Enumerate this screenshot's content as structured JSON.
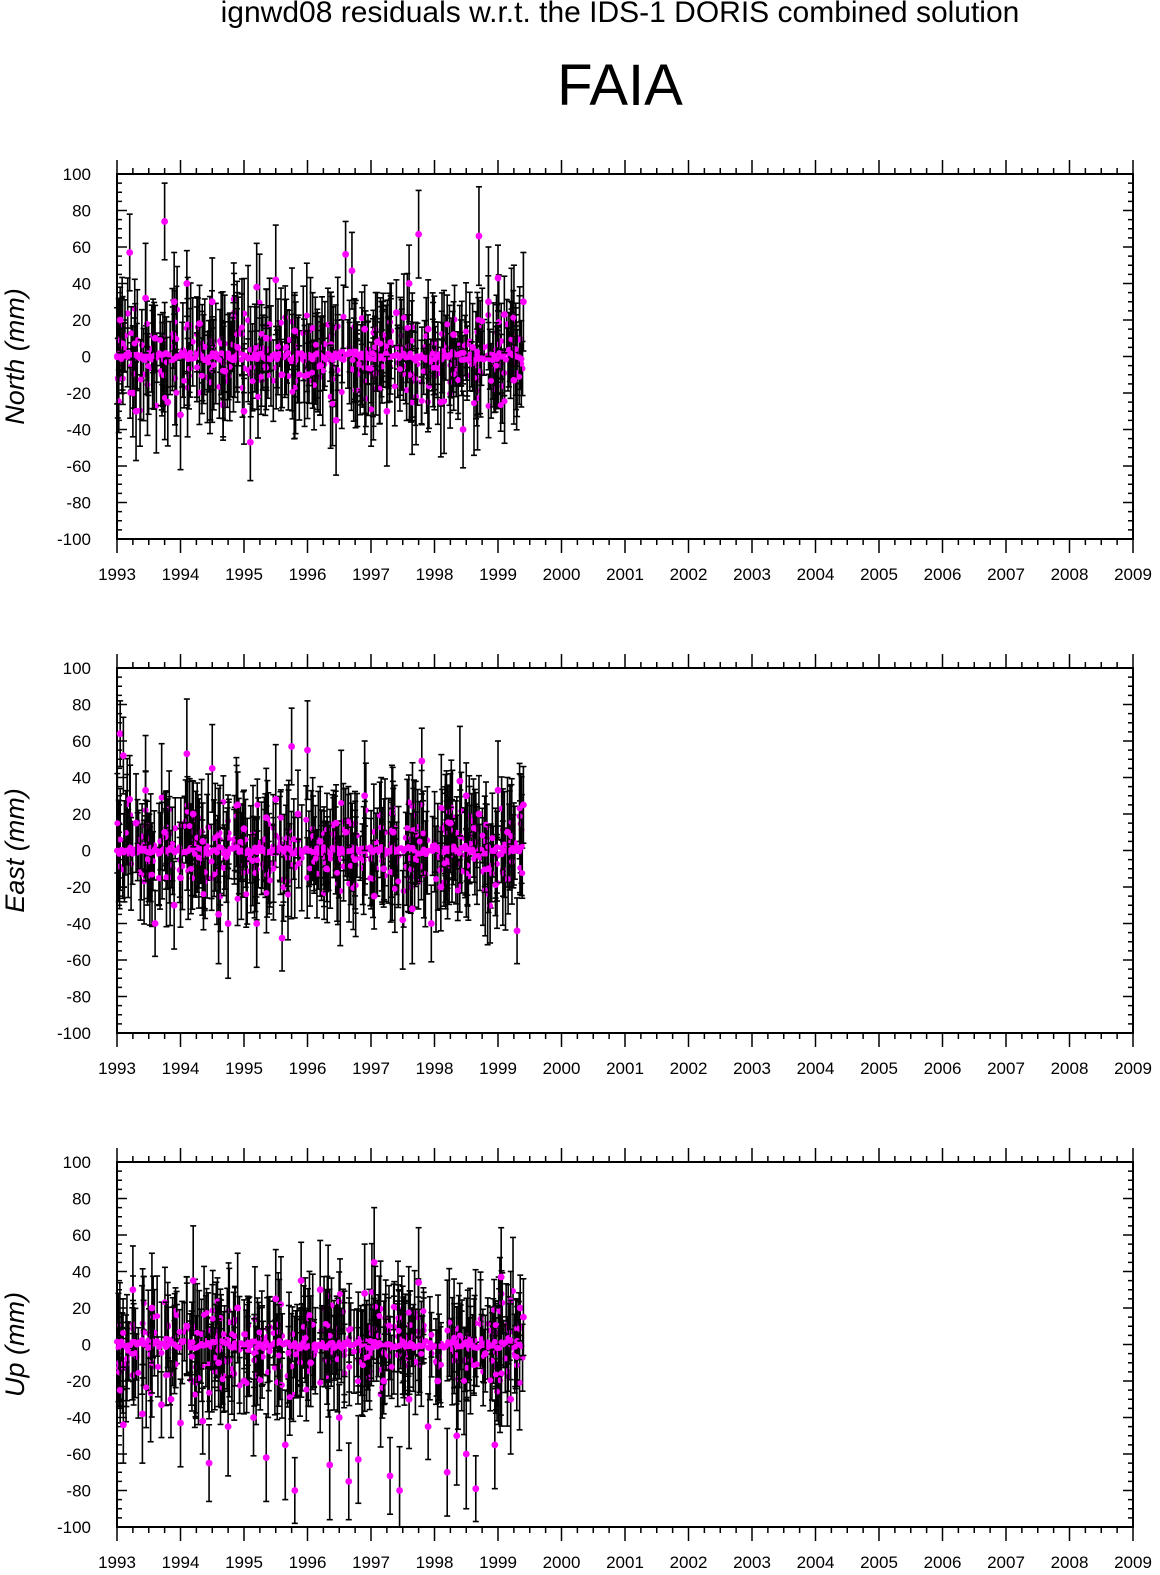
{
  "header": {
    "suptitle": "ignwd08 residuals w.r.t. the IDS-1 DORIS combined solution",
    "station": "FAIA"
  },
  "colors": {
    "point": "#ff00ff",
    "errorbar": "#000000",
    "frame": "#000000"
  },
  "chart_data": [
    {
      "type": "scatter",
      "ylabel": "North (mm)",
      "xlim": [
        1993,
        2009
      ],
      "ylim": [
        -100,
        100
      ],
      "x_ticks": [
        1993,
        1994,
        1995,
        1996,
        1997,
        1998,
        1999,
        2000,
        2001,
        2002,
        2003,
        2004,
        2005,
        2006,
        2007,
        2008,
        2009
      ],
      "y_ticks": [
        100,
        80,
        60,
        40,
        20,
        0,
        -20,
        -40,
        -60,
        -80,
        -100
      ],
      "error_bars": true,
      "series": [
        {
          "x": [
            1993.05,
            1993.2,
            1993.25,
            1993.3,
            1993.45,
            1993.6,
            1993.75,
            1993.8,
            1993.9,
            1994.0,
            1994.1,
            1994.3,
            1994.5,
            1994.7,
            1994.9,
            1995.0,
            1995.1,
            1995.2,
            1995.35,
            1995.5,
            1995.6,
            1995.8,
            1996.0,
            1996.2,
            1996.45,
            1996.6,
            1996.7,
            1996.9,
            1997.1,
            1997.25,
            1997.4,
            1997.6,
            1997.75,
            1997.9,
            1998.1,
            1998.3,
            1998.45,
            1998.6,
            1998.7,
            1998.85,
            1999.0,
            1999.1,
            1999.25,
            1999.4
          ],
          "y": [
            20,
            57,
            -20,
            -30,
            32,
            10,
            74,
            -25,
            30,
            -32,
            40,
            18,
            30,
            -8,
            5,
            -30,
            -47,
            38,
            10,
            42,
            -10,
            14,
            -10,
            -5,
            -35,
            56,
            47,
            15,
            8,
            -30,
            24,
            40,
            67,
            15,
            -25,
            12,
            -40,
            5,
            66,
            30,
            43,
            23,
            -13,
            30
          ]
        }
      ]
    },
    {
      "type": "scatter",
      "ylabel": "East (mm)",
      "xlim": [
        1993,
        2009
      ],
      "ylim": [
        -100,
        100
      ],
      "x_ticks": [
        1993,
        1994,
        1995,
        1996,
        1997,
        1998,
        1999,
        2000,
        2001,
        2002,
        2003,
        2004,
        2005,
        2006,
        2007,
        2008,
        2009
      ],
      "y_ticks": [
        100,
        80,
        60,
        40,
        20,
        0,
        -20,
        -40,
        -60,
        -80,
        -100
      ],
      "error_bars": true,
      "series": [
        {
          "x": [
            1993.05,
            1993.1,
            1993.2,
            1993.3,
            1993.45,
            1993.6,
            1993.75,
            1993.9,
            1994.0,
            1994.1,
            1994.2,
            1994.35,
            1994.5,
            1994.6,
            1994.75,
            1994.9,
            1995.0,
            1995.2,
            1995.35,
            1995.5,
            1995.6,
            1995.75,
            1995.85,
            1996.0,
            1996.2,
            1996.3,
            1996.45,
            1996.6,
            1996.75,
            1996.9,
            1997.05,
            1997.2,
            1997.35,
            1997.5,
            1997.65,
            1997.8,
            1997.95,
            1998.1,
            1998.25,
            1998.4,
            1998.5,
            1998.7,
            1998.85,
            1999.0,
            1999.15,
            1999.3,
            1999.4
          ],
          "y": [
            64,
            52,
            28,
            15,
            33,
            -40,
            10,
            -30,
            -15,
            53,
            20,
            5,
            45,
            -35,
            -40,
            25,
            12,
            -40,
            18,
            28,
            -48,
            57,
            20,
            55,
            5,
            -10,
            15,
            10,
            -5,
            30,
            -25,
            -10,
            10,
            -38,
            -32,
            49,
            -40,
            -20,
            15,
            38,
            30,
            20,
            -10,
            33,
            10,
            -44,
            25
          ]
        }
      ]
    },
    {
      "type": "scatter",
      "ylabel": "Up (mm)",
      "xlim": [
        1993,
        2009
      ],
      "ylim": [
        -100,
        100
      ],
      "x_ticks": [
        1993,
        1994,
        1995,
        1996,
        1997,
        1998,
        1999,
        2000,
        2001,
        2002,
        2003,
        2004,
        2005,
        2006,
        2007,
        2008,
        2009
      ],
      "y_ticks": [
        100,
        80,
        60,
        40,
        20,
        0,
        -20,
        -40,
        -60,
        -80,
        -100
      ],
      "error_bars": true,
      "series": [
        {
          "x": [
            1993.05,
            1993.1,
            1993.25,
            1993.4,
            1993.55,
            1993.7,
            1993.85,
            1994.0,
            1994.1,
            1994.2,
            1994.35,
            1994.45,
            1994.6,
            1994.75,
            1994.9,
            1995.0,
            1995.15,
            1995.35,
            1995.5,
            1995.65,
            1995.8,
            1995.9,
            1996.05,
            1996.2,
            1996.35,
            1996.5,
            1996.65,
            1996.8,
            1996.9,
            1997.05,
            1997.2,
            1997.3,
            1997.45,
            1997.6,
            1997.75,
            1997.9,
            1998.05,
            1998.2,
            1998.35,
            1998.5,
            1998.65,
            1998.8,
            1998.95,
            1999.05,
            1999.2,
            1999.35,
            1999.4
          ],
          "y": [
            -25,
            -44,
            30,
            -38,
            20,
            -33,
            -30,
            -43,
            10,
            35,
            -42,
            -65,
            -10,
            -45,
            20,
            -20,
            -40,
            -62,
            25,
            -55,
            -80,
            35,
            -10,
            30,
            -66,
            -40,
            -75,
            -63,
            28,
            45,
            -20,
            -72,
            -80,
            -30,
            34,
            -45,
            -20,
            -70,
            -50,
            -60,
            -79,
            -5,
            -55,
            37,
            -30,
            20,
            15
          ]
        }
      ]
    }
  ]
}
